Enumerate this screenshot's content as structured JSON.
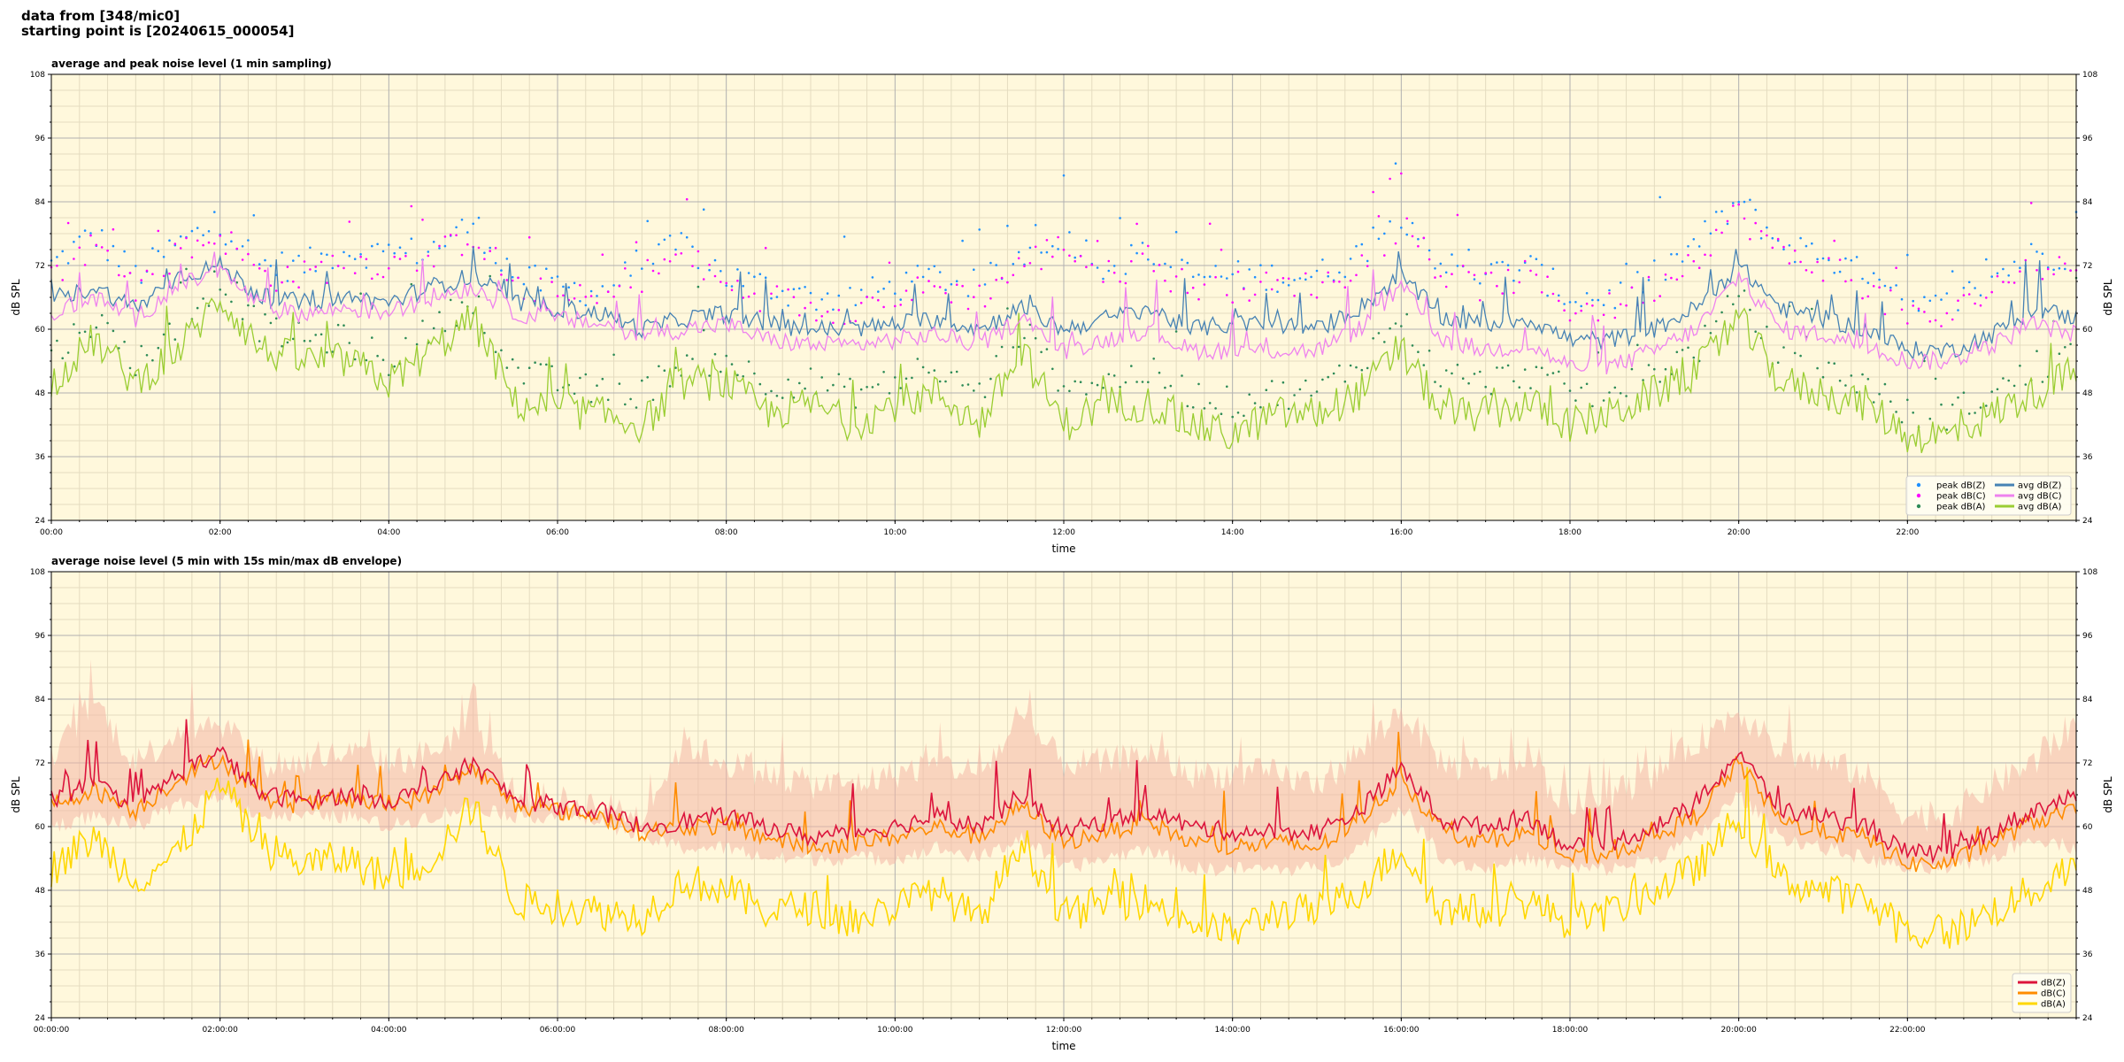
{
  "header": {
    "line1": "data from [348/mic0]",
    "line2": "starting point is [20240615_000054]"
  },
  "colors": {
    "background": "#fff8dc",
    "grid_major": "#b0b0b0",
    "grid_minor": "#e4dcc0",
    "dbz_avg": "#4682b4",
    "dbc_avg": "#ee82ee",
    "dba_avg": "#9acd32",
    "dbz_peak": "#1e90ff",
    "dbc_peak": "#ff00ff",
    "dba_peak": "#2e8b57",
    "env_z": "#dc143c",
    "env_c": "#ff8c00",
    "env_a": "#ffd700",
    "envelope_fill": "#f4b6a6"
  },
  "chart_data": [
    {
      "type": "line",
      "title": "average and peak noise level (1 min sampling)",
      "xlabel": "time",
      "ylabel": "dB SPL",
      "xlim": [
        0,
        1440
      ],
      "ylim": [
        24,
        108
      ],
      "x_unit": "minutes after 00:00",
      "yticks": [
        24,
        36,
        48,
        60,
        72,
        84,
        96,
        108
      ],
      "xtick_labels": [
        "00:00",
        "02:00",
        "04:00",
        "06:00",
        "08:00",
        "10:00",
        "12:00",
        "14:00",
        "16:00",
        "18:00",
        "20:00",
        "22:00"
      ],
      "legend": {
        "position": "lower right",
        "entries": [
          "peak dB(Z)",
          "peak dB(C)",
          "peak dB(A)",
          "avg dB(Z)",
          "avg dB(C)",
          "avg dB(A)"
        ]
      },
      "grid": true,
      "x": [
        0,
        30,
        60,
        90,
        120,
        150,
        180,
        210,
        240,
        270,
        300,
        330,
        360,
        390,
        420,
        450,
        480,
        510,
        540,
        570,
        600,
        630,
        660,
        690,
        720,
        750,
        780,
        810,
        840,
        870,
        900,
        930,
        960,
        990,
        1020,
        1050,
        1080,
        1110,
        1140,
        1170,
        1200,
        1230,
        1260,
        1290,
        1320,
        1350,
        1380,
        1410,
        1440
      ],
      "series": [
        {
          "name": "avg dB(Z)",
          "values": [
            65,
            68,
            64,
            70,
            72,
            66,
            65,
            66,
            65,
            68,
            70,
            65,
            64,
            63,
            60,
            62,
            63,
            61,
            60,
            60,
            61,
            62,
            60,
            64,
            60,
            62,
            64,
            60,
            61,
            61,
            60,
            64,
            70,
            62,
            61,
            62,
            58,
            58,
            60,
            64,
            72,
            64,
            62,
            60,
            56,
            56,
            59,
            64,
            62
          ]
        },
        {
          "name": "avg dB(C)",
          "values": [
            63,
            66,
            62,
            68,
            71,
            64,
            63,
            64,
            63,
            66,
            68,
            63,
            62,
            61,
            59,
            60,
            61,
            58,
            57,
            57,
            58,
            59,
            57,
            62,
            56,
            58,
            60,
            56,
            56,
            56,
            56,
            60,
            68,
            58,
            56,
            57,
            53,
            53,
            56,
            60,
            70,
            60,
            59,
            57,
            54,
            54,
            57,
            61,
            59
          ]
        },
        {
          "name": "avg dB(A)",
          "values": [
            50,
            58,
            50,
            56,
            66,
            56,
            54,
            54,
            50,
            56,
            62,
            46,
            45,
            44,
            42,
            50,
            50,
            44,
            46,
            42,
            46,
            48,
            42,
            56,
            42,
            46,
            46,
            42,
            40,
            44,
            44,
            48,
            56,
            44,
            44,
            46,
            42,
            44,
            48,
            52,
            62,
            50,
            48,
            46,
            40,
            40,
            44,
            48,
            52
          ]
        },
        {
          "name": "peak dB(Z)",
          "values": [
            72,
            78,
            70,
            76,
            80,
            72,
            72,
            75,
            74,
            75,
            80,
            70,
            68,
            67,
            72,
            76,
            70,
            68,
            66,
            66,
            68,
            70,
            68,
            74,
            78,
            72,
            74,
            70,
            70,
            70,
            70,
            74,
            82,
            72,
            70,
            72,
            66,
            66,
            70,
            76,
            84,
            76,
            74,
            70,
            64,
            64,
            70,
            74,
            74
          ]
        },
        {
          "name": "peak dB(C)",
          "values": [
            70,
            76,
            68,
            74,
            78,
            70,
            70,
            73,
            72,
            73,
            78,
            68,
            66,
            65,
            70,
            74,
            68,
            66,
            64,
            64,
            66,
            68,
            66,
            72,
            76,
            70,
            72,
            68,
            68,
            68,
            68,
            72,
            80,
            70,
            68,
            70,
            64,
            64,
            68,
            74,
            82,
            74,
            72,
            68,
            62,
            62,
            68,
            72,
            72
          ]
        },
        {
          "name": "peak dB(A)",
          "values": [
            55,
            62,
            54,
            60,
            70,
            60,
            58,
            58,
            54,
            60,
            66,
            52,
            50,
            48,
            48,
            54,
            54,
            50,
            50,
            48,
            50,
            52,
            48,
            60,
            50,
            50,
            52,
            48,
            46,
            48,
            48,
            54,
            62,
            50,
            50,
            52,
            48,
            48,
            52,
            56,
            66,
            54,
            52,
            50,
            44,
            44,
            48,
            52,
            56
          ]
        }
      ]
    },
    {
      "type": "line",
      "title": "average noise level (5 min with 15s min/max dB envelope)",
      "xlabel": "time",
      "ylabel": "dB SPL",
      "xlim": [
        0,
        1440
      ],
      "ylim": [
        24,
        108
      ],
      "x_unit": "minutes after 00:00:00",
      "yticks": [
        24,
        36,
        48,
        60,
        72,
        84,
        96,
        108
      ],
      "xtick_labels": [
        "00:00:00",
        "02:00:00",
        "04:00:00",
        "06:00:00",
        "08:00:00",
        "10:00:00",
        "12:00:00",
        "14:00:00",
        "16:00:00",
        "18:00:00",
        "20:00:00",
        "22:00:00"
      ],
      "legend": {
        "position": "lower right",
        "entries": [
          "dB(Z)",
          "dB(C)",
          "dB(A)"
        ]
      },
      "grid": true,
      "x": [
        0,
        30,
        60,
        90,
        120,
        150,
        180,
        210,
        240,
        270,
        300,
        330,
        360,
        390,
        420,
        450,
        480,
        510,
        540,
        570,
        600,
        630,
        660,
        690,
        720,
        750,
        780,
        810,
        840,
        870,
        900,
        930,
        960,
        990,
        1020,
        1050,
        1080,
        1110,
        1140,
        1170,
        1200,
        1230,
        1260,
        1290,
        1320,
        1350,
        1380,
        1410,
        1440
      ],
      "envelope": {
        "max": [
          72,
          84,
          72,
          78,
          80,
          72,
          72,
          74,
          72,
          74,
          80,
          66,
          65,
          64,
          62,
          76,
          72,
          70,
          68,
          68,
          70,
          72,
          70,
          80,
          72,
          72,
          74,
          70,
          70,
          70,
          68,
          74,
          82,
          72,
          70,
          72,
          64,
          66,
          70,
          76,
          82,
          74,
          72,
          70,
          62,
          62,
          68,
          72,
          80
        ],
        "min": [
          60,
          62,
          60,
          64,
          66,
          62,
          62,
          62,
          60,
          62,
          64,
          62,
          62,
          61,
          58,
          56,
          56,
          54,
          54,
          54,
          54,
          56,
          54,
          58,
          52,
          54,
          56,
          52,
          52,
          52,
          52,
          56,
          64,
          54,
          52,
          54,
          52,
          52,
          54,
          58,
          66,
          58,
          56,
          54,
          52,
          52,
          54,
          58,
          56
        ]
      },
      "series": [
        {
          "name": "dB(Z)",
          "values": [
            65,
            68,
            64,
            70,
            74,
            66,
            65,
            66,
            65,
            67,
            72,
            65,
            64,
            63,
            60,
            61,
            62,
            60,
            58,
            59,
            60,
            62,
            60,
            66,
            59,
            61,
            63,
            60,
            59,
            59,
            59,
            63,
            71,
            61,
            60,
            62,
            56,
            57,
            60,
            64,
            74,
            63,
            62,
            60,
            55,
            55,
            59,
            63,
            66
          ]
        },
        {
          "name": "dB(C)",
          "values": [
            64,
            67,
            63,
            69,
            73,
            65,
            64,
            65,
            64,
            66,
            71,
            64,
            63,
            62,
            59,
            60,
            60,
            58,
            56,
            57,
            58,
            60,
            58,
            64,
            57,
            59,
            61,
            57,
            56,
            57,
            56,
            61,
            69,
            59,
            57,
            59,
            54,
            55,
            58,
            62,
            72,
            61,
            59,
            58,
            53,
            53,
            57,
            61,
            63
          ]
        },
        {
          "name": "dB(A)",
          "values": [
            52,
            58,
            50,
            55,
            68,
            56,
            53,
            54,
            50,
            54,
            64,
            46,
            45,
            44,
            43,
            50,
            48,
            44,
            45,
            42,
            45,
            48,
            42,
            58,
            43,
            46,
            46,
            42,
            40,
            44,
            44,
            48,
            56,
            44,
            44,
            46,
            42,
            44,
            48,
            52,
            62,
            50,
            48,
            46,
            40,
            40,
            44,
            48,
            52
          ]
        }
      ]
    }
  ]
}
